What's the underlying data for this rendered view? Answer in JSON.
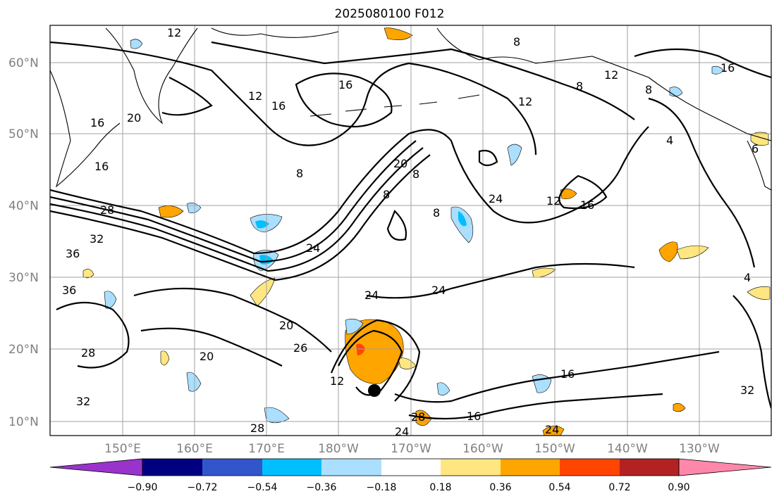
{
  "title": "2025080100 F012",
  "lat_labels": [
    "60°N",
    "50°N",
    "40°N",
    "30°N",
    "20°N",
    "10°N"
  ],
  "lon_labels": [
    "150°E",
    "160°E",
    "170°E",
    "180°W",
    "170°W",
    "160°W",
    "150°W",
    "140°W",
    "130°W"
  ],
  "colorbar": {
    "ticks": [
      "−0.90",
      "−0.72",
      "−0.54",
      "−0.36",
      "−0.18",
      "0.18",
      "0.36",
      "0.54",
      "0.72",
      "0.90"
    ],
    "colors": [
      "#9933cc",
      "#000080",
      "#3355cc",
      "#00bfff",
      "#aadfff",
      "#ffffff",
      "#ffe680",
      "#ffa500",
      "#ff4500",
      "#b22222",
      "#ff88aa"
    ]
  },
  "contour_labels": [
    "12",
    "16",
    "8",
    "16",
    "12",
    "8",
    "12",
    "16",
    "20",
    "16",
    "12",
    "8",
    "8",
    "20",
    "8",
    "24",
    "12",
    "16",
    "8",
    "16",
    "8",
    "28",
    "32",
    "36",
    "36",
    "24",
    "24",
    "24",
    "20",
    "20",
    "28",
    "26",
    "28",
    "12",
    "16",
    "16",
    "24",
    "24",
    "28",
    "32",
    "32",
    "4",
    "4",
    "6"
  ],
  "marker": "storm-center"
}
